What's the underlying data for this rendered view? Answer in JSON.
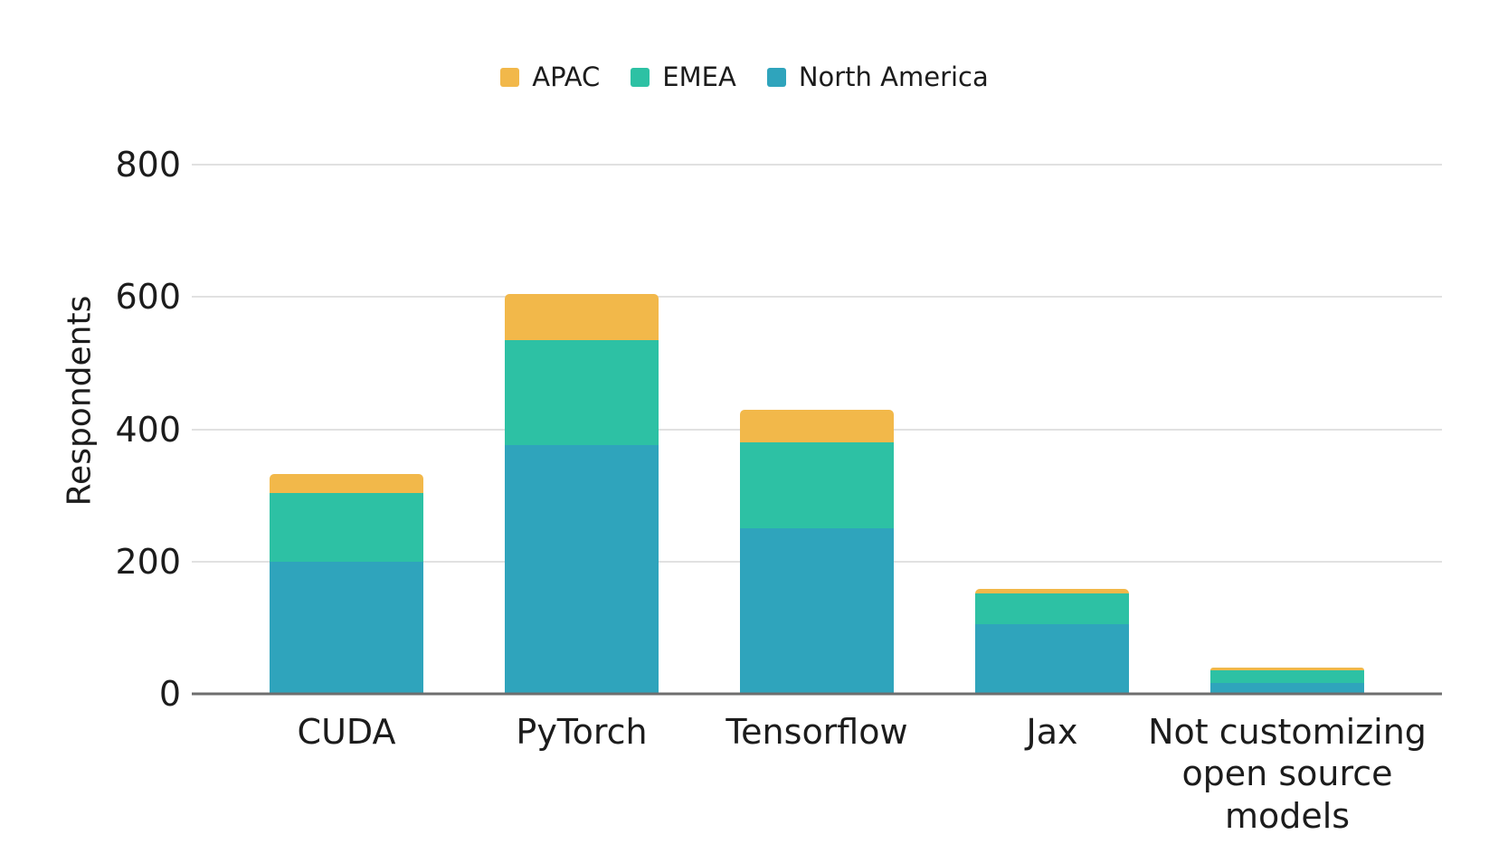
{
  "page": {
    "background": "#ffffff"
  },
  "legend": {
    "position": "top-center"
  },
  "chart_data": {
    "type": "bar",
    "stacked": true,
    "title": "",
    "xlabel": "",
    "ylabel": "Respondents",
    "ylim": [
      0,
      800
    ],
    "yticks": [
      0,
      200,
      400,
      600,
      800
    ],
    "grid": true,
    "legend_position": "top",
    "categories": [
      "CUDA",
      "PyTorch",
      "Tensorflow",
      "Jax",
      "Not customizing open source models"
    ],
    "series": [
      {
        "name": "APAC",
        "color": "#F2B84A",
        "values": [
          30,
          70,
          50,
          6,
          5
        ]
      },
      {
        "name": "EMEA",
        "color": "#2DC1A4",
        "values": [
          103,
          159,
          130,
          47,
          19
        ]
      },
      {
        "name": "North America",
        "color": "#2FA4BC",
        "values": [
          200,
          376,
          250,
          105,
          16
        ]
      }
    ],
    "totals": [
      333,
      605,
      430,
      158,
      40
    ],
    "colors": {
      "gridline": "#e1e1e1",
      "axis_line": "#6e6e6e",
      "text": "#1c1c1c"
    }
  }
}
